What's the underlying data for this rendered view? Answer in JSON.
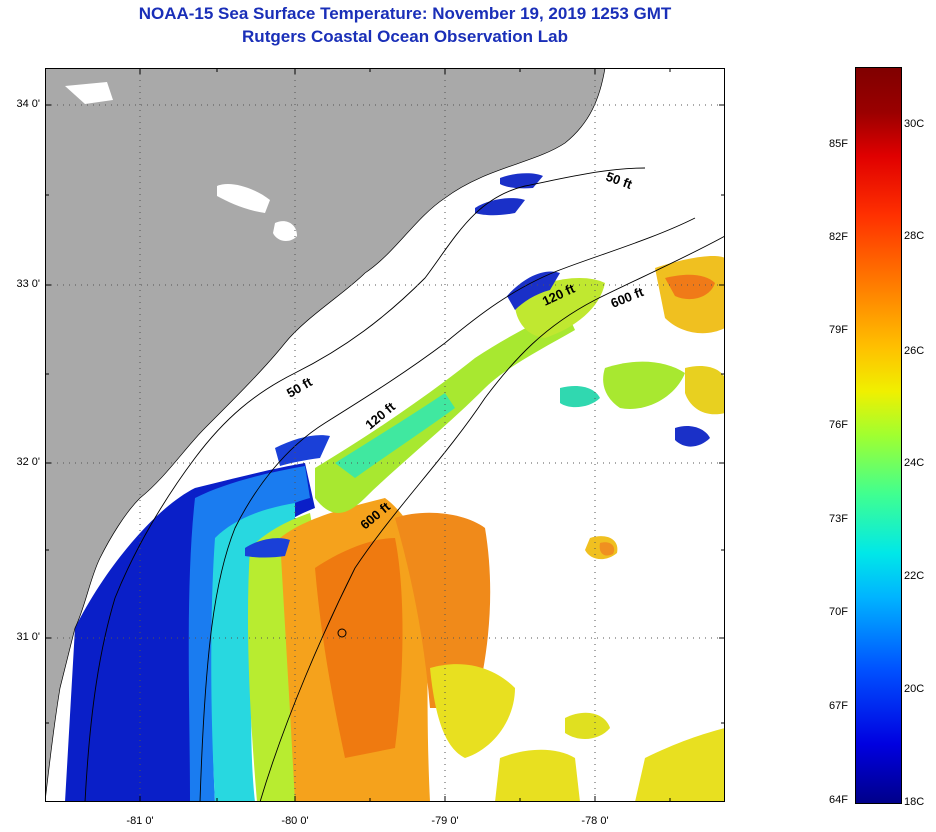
{
  "title_line1": "NOAA-15 Sea Surface Temperature:  November 19, 2019 1253 GMT",
  "title_line2": "Rutgers Coastal Ocean Observation Lab",
  "lat_labels": [
    "34 0'",
    "33 0'",
    "32 0'",
    "31 0'"
  ],
  "lon_labels": [
    "-81 0'",
    "-80 0'",
    "-79 0'",
    "-78 0'"
  ],
  "contours": {
    "fifty_north": "50 ft",
    "fifty_mid": "50 ft",
    "one_twenty_north": "120 ft",
    "one_twenty_mid": "120 ft",
    "six_hundred_north": "600 ft",
    "six_hundred_south": "600 ft"
  },
  "colorbar": {
    "fahrenheit": [
      "85F",
      "82F",
      "79F",
      "76F",
      "73F",
      "70F",
      "67F",
      "64F"
    ],
    "celsius": [
      "30C",
      "28C",
      "26C",
      "24C",
      "22C",
      "20C",
      "18C"
    ]
  },
  "colors": {
    "title": "#1a2fb8",
    "land": "#a9a9a9"
  }
}
